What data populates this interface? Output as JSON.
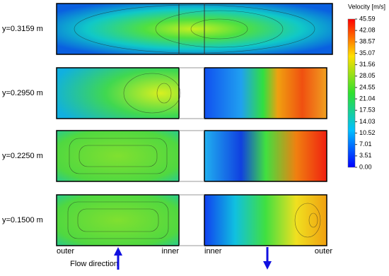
{
  "rows": [
    {
      "label": "y=0.3159 m"
    },
    {
      "label": "y=0.2950 m"
    },
    {
      "label": "y=0.2250 m"
    },
    {
      "label": "y=0.1500 m"
    }
  ],
  "colorbar": {
    "title": "Velocity [m/s]",
    "ticks": [
      "45.59",
      "42.08",
      "38.57",
      "35.07",
      "31.56",
      "28.05",
      "24.55",
      "21.04",
      "17.53",
      "14.03",
      "10.52",
      "7.01",
      "3.51",
      "0.00"
    ]
  },
  "bottom_labels": [
    "outer",
    "inner",
    "inner",
    "outer"
  ],
  "flow_direction": "Flow direction"
}
